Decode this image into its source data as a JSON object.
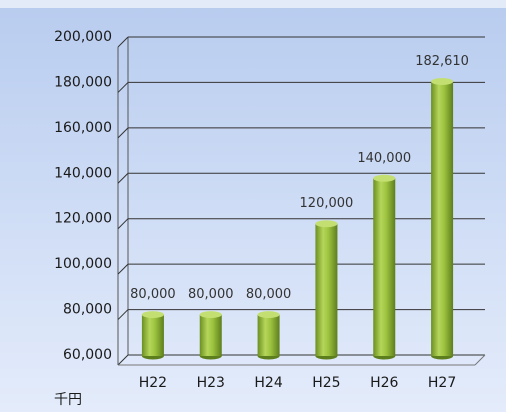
{
  "chart_data": {
    "type": "bar",
    "categories": [
      "H22",
      "H23",
      "H24",
      "H25",
      "H26",
      "H27"
    ],
    "values": [
      80000,
      80000,
      80000,
      120000,
      140000,
      182610
    ],
    "value_labels": [
      "80,000",
      "80,000",
      "80,000",
      "120,000",
      "140,000",
      "182,610"
    ],
    "color": "#8db33a",
    "ylim": [
      60000,
      200000
    ],
    "yticks": [
      {
        "value": 60000,
        "label": "60,000"
      },
      {
        "value": 80000,
        "label": "80,000"
      },
      {
        "value": 100000,
        "label": "100,000"
      },
      {
        "value": 120000,
        "label": "120,000"
      },
      {
        "value": 140000,
        "label": "140,000"
      },
      {
        "value": 160000,
        "label": "160,000"
      },
      {
        "value": 180000,
        "label": "180,000"
      },
      {
        "value": 200000,
        "label": "200,000"
      }
    ],
    "grid": true,
    "unit_label": "千円"
  }
}
